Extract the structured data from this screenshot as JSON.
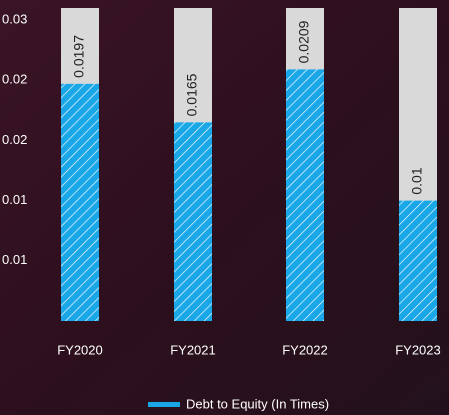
{
  "chart_data": {
    "type": "bar",
    "categories": [
      "FY2020",
      "FY2021",
      "FY2022",
      "FY2023"
    ],
    "series": [
      {
        "name": "Debt to Equity (In Times)",
        "color": "#1aa7e8",
        "values": [
          0.0197,
          0.0165,
          0.0209,
          0.01
        ]
      }
    ],
    "ylim": [
      0,
      0.026
    ],
    "yticks": [
      {
        "value": 0.025,
        "label": "0.03"
      },
      {
        "value": 0.02,
        "label": "0.02"
      },
      {
        "value": 0.015,
        "label": "0.02"
      },
      {
        "value": 0.01,
        "label": "0.01"
      },
      {
        "value": 0.005,
        "label": "0.01"
      }
    ],
    "grid": false,
    "legend": "bottom"
  }
}
